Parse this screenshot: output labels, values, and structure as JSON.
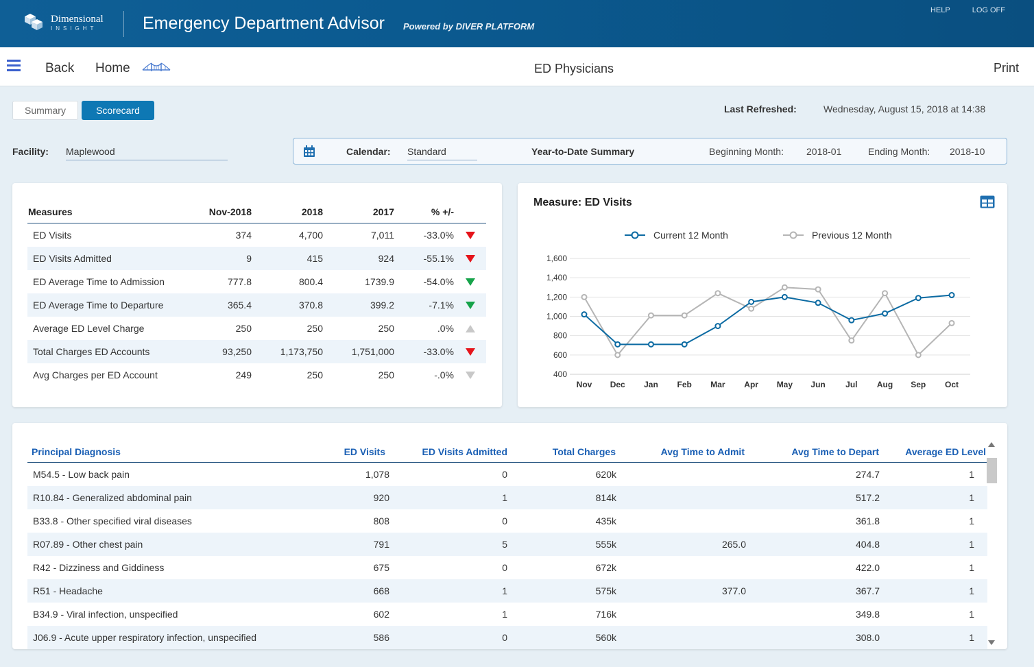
{
  "header": {
    "logo_line1": "Dimensional",
    "logo_line2": "INSIGHT",
    "title": "Emergency Department Advisor",
    "powered_by": "Powered by DIVER PLATFORM",
    "help": "HELP",
    "logoff": "LOG OFF"
  },
  "nav": {
    "back": "Back",
    "home": "Home",
    "page_title": "ED Physicians",
    "print": "Print"
  },
  "tabs": {
    "summary": "Summary",
    "scorecard": "Scorecard",
    "active": "Scorecard"
  },
  "refresh": {
    "label": "Last Refreshed:",
    "value": "Wednesday, August 15, 2018 at 14:38"
  },
  "filters": {
    "facility_label": "Facility:",
    "facility_value": "Maplewood",
    "calendar_label": "Calendar:",
    "calendar_value": "Standard",
    "summary_type": "Year-to-Date Summary",
    "begin_label": "Beginning Month:",
    "begin_value": "2018-01",
    "end_label": "Ending Month:",
    "end_value": "2018-10"
  },
  "measures": {
    "headers": {
      "name": "Measures",
      "nov": "Nov-2018",
      "y2018": "2018",
      "y2017": "2017",
      "pct": "% +/-"
    },
    "rows": [
      {
        "name": "ED Visits",
        "nov": "374",
        "y2018": "4,700",
        "y2017": "7,011",
        "pct": "-33.0%",
        "trend": "down-red"
      },
      {
        "name": "ED Visits Admitted",
        "nov": "9",
        "y2018": "415",
        "y2017": "924",
        "pct": "-55.1%",
        "trend": "down-red"
      },
      {
        "name": "ED Average Time to Admission",
        "nov": "777.8",
        "y2018": "800.4",
        "y2017": "1739.9",
        "pct": "-54.0%",
        "trend": "down-green"
      },
      {
        "name": "ED Average Time to Departure",
        "nov": "365.4",
        "y2018": "370.8",
        "y2017": "399.2",
        "pct": "-7.1%",
        "trend": "down-green"
      },
      {
        "name": "Average ED Level Charge",
        "nov": "250",
        "y2018": "250",
        "y2017": "250",
        "pct": ".0%",
        "trend": "up-gray"
      },
      {
        "name": "Total Charges ED Accounts",
        "nov": "93,250",
        "y2018": "1,173,750",
        "y2017": "1,751,000",
        "pct": "-33.0%",
        "trend": "down-red"
      },
      {
        "name": "Avg Charges per ED Account",
        "nov": "249",
        "y2018": "250",
        "y2017": "250",
        "pct": "-.0%",
        "trend": "down-gray"
      }
    ]
  },
  "chart_title": "Measure: ED Visits",
  "chart_data": {
    "type": "line",
    "title": "Measure: ED Visits",
    "categories": [
      "Nov",
      "Dec",
      "Jan",
      "Feb",
      "Mar",
      "Apr",
      "May",
      "Jun",
      "Jul",
      "Aug",
      "Sep",
      "Oct"
    ],
    "series": [
      {
        "name": "Current 12 Month",
        "color": "#0b6aa2",
        "values": [
          1020,
          710,
          710,
          710,
          900,
          1150,
          1200,
          1140,
          960,
          1030,
          1190,
          1220
        ]
      },
      {
        "name": "Previous 12 Month",
        "color": "#b5b5b5",
        "values": [
          1200,
          600,
          1010,
          1010,
          1240,
          1080,
          1300,
          1280,
          750,
          1240,
          600,
          930
        ]
      }
    ],
    "ylim": [
      400,
      1600
    ],
    "yticks": [
      400,
      600,
      800,
      1000,
      1200,
      1400,
      1600
    ],
    "ytick_labels": [
      "400",
      "600",
      "800",
      "1,000",
      "1,200",
      "1,400",
      "1,600"
    ],
    "grid": true,
    "legend": "top"
  },
  "diagnosis": {
    "headers": {
      "name": "Principal Diagnosis",
      "visits": "ED Visits",
      "admitted": "ED Visits Admitted",
      "charges": "Total Charges",
      "admit_time": "Avg Time to Admit",
      "depart_time": "Avg Time to Depart",
      "level": "Average ED Level"
    },
    "rows": [
      {
        "name": "M54.5 - Low back pain",
        "visits": "1,078",
        "admitted": "0",
        "charges": "620k",
        "admit_time": "",
        "depart_time": "274.7",
        "level": "1"
      },
      {
        "name": "R10.84 - Generalized abdominal pain",
        "visits": "920",
        "admitted": "1",
        "charges": "814k",
        "admit_time": "",
        "depart_time": "517.2",
        "level": "1"
      },
      {
        "name": "B33.8 - Other specified viral diseases",
        "visits": "808",
        "admitted": "0",
        "charges": "435k",
        "admit_time": "",
        "depart_time": "361.8",
        "level": "1"
      },
      {
        "name": "R07.89 - Other chest pain",
        "visits": "791",
        "admitted": "5",
        "charges": "555k",
        "admit_time": "265.0",
        "depart_time": "404.8",
        "level": "1"
      },
      {
        "name": "R42 - Dizziness and Giddiness",
        "visits": "675",
        "admitted": "0",
        "charges": "672k",
        "admit_time": "",
        "depart_time": "422.0",
        "level": "1"
      },
      {
        "name": "R51 - Headache",
        "visits": "668",
        "admitted": "1",
        "charges": "575k",
        "admit_time": "377.0",
        "depart_time": "367.7",
        "level": "1"
      },
      {
        "name": "B34.9 - Viral infection, unspecified",
        "visits": "602",
        "admitted": "1",
        "charges": "716k",
        "admit_time": "",
        "depart_time": "349.8",
        "level": "1"
      },
      {
        "name": "J06.9 - Acute upper respiratory infection, unspecified",
        "visits": "586",
        "admitted": "0",
        "charges": "560k",
        "admit_time": "",
        "depart_time": "308.0",
        "level": "1"
      }
    ]
  },
  "colors": {
    "header_bg": "#0b5a90",
    "accent": "#0e78b4",
    "link_blue": "#1a5fb4",
    "down_red": "#e5141b",
    "down_green": "#16a34a",
    "neutral_gray": "#c8c8c8"
  },
  "icons": {
    "menu": "hamburger-menu-icon",
    "home_logo": "bridge-icon",
    "calendar": "calendar-icon",
    "table_view": "table-grid-icon"
  }
}
